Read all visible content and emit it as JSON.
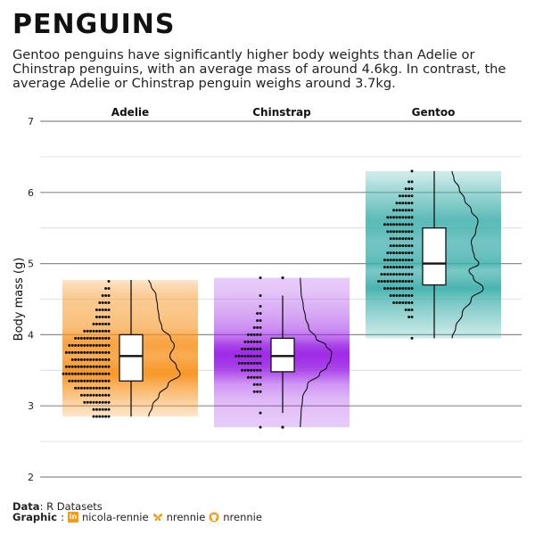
{
  "title": "PENGUINS",
  "subtitle": "Gentoo penguins have significantly higher body weights than Adelie or Chinstrap penguins, with an average mass of around 4.6kg. In contrast, the average Adelie or Chinstrap penguin weighs around 3.7kg.",
  "caption": {
    "data_label": "Data",
    "data_value": ": R Datasets",
    "graphic_label": "Graphic",
    "linkedin": "nicola-rennie",
    "bluesky": "nrennie",
    "github": "nrennie",
    "linkedin_icon": "in"
  },
  "icons": [
    "linkedin-icon",
    "butterfly-icon",
    "github-icon"
  ],
  "chart_data": {
    "type": "raincloud",
    "ylabel": "Body mass (g)",
    "xlabel": "",
    "ylim": [
      2,
      7
    ],
    "yticks": [
      2,
      3,
      4,
      5,
      6,
      7
    ],
    "grid": true,
    "facets": [
      {
        "name": "Adelie",
        "color": "#f7931e",
        "range": [
          2.85,
          4.77
        ],
        "box": {
          "min": 2.85,
          "q1": 3.35,
          "median": 3.7,
          "q3": 4.0,
          "max": 4.77
        },
        "density": [
          [
            2.85,
            0.02
          ],
          [
            3.0,
            0.12
          ],
          [
            3.15,
            0.3
          ],
          [
            3.3,
            0.55
          ],
          [
            3.45,
            0.88
          ],
          [
            3.55,
            0.78
          ],
          [
            3.7,
            0.6
          ],
          [
            3.85,
            0.72
          ],
          [
            3.95,
            0.62
          ],
          [
            4.1,
            0.38
          ],
          [
            4.25,
            0.3
          ],
          [
            4.4,
            0.26
          ],
          [
            4.55,
            0.22
          ],
          [
            4.7,
            0.08
          ],
          [
            4.77,
            0.02
          ]
        ],
        "dots": [
          [
            2.85,
            6
          ],
          [
            2.95,
            6
          ],
          [
            3.05,
            9
          ],
          [
            3.15,
            10
          ],
          [
            3.25,
            12
          ],
          [
            3.35,
            14
          ],
          [
            3.45,
            16
          ],
          [
            3.55,
            15
          ],
          [
            3.65,
            13
          ],
          [
            3.75,
            15
          ],
          [
            3.85,
            14
          ],
          [
            3.95,
            12
          ],
          [
            4.05,
            9
          ],
          [
            4.15,
            6
          ],
          [
            4.25,
            5
          ],
          [
            4.35,
            5
          ],
          [
            4.45,
            4
          ],
          [
            4.55,
            3
          ],
          [
            4.65,
            2
          ],
          [
            4.75,
            1
          ]
        ]
      },
      {
        "name": "Chinstrap",
        "color": "#9b22e6",
        "range": [
          2.7,
          4.8
        ],
        "box": {
          "min": 2.9,
          "q1": 3.48,
          "median": 3.7,
          "q3": 3.95,
          "max": 4.55
        },
        "outliers": [
          2.7,
          4.8
        ],
        "density": [
          [
            2.7,
            0.02
          ],
          [
            2.9,
            0.04
          ],
          [
            3.1,
            0.08
          ],
          [
            3.3,
            0.22
          ],
          [
            3.45,
            0.55
          ],
          [
            3.55,
            0.75
          ],
          [
            3.65,
            0.85
          ],
          [
            3.75,
            0.88
          ],
          [
            3.85,
            0.72
          ],
          [
            3.95,
            0.45
          ],
          [
            4.1,
            0.25
          ],
          [
            4.25,
            0.16
          ],
          [
            4.4,
            0.1
          ],
          [
            4.6,
            0.04
          ],
          [
            4.8,
            0.02
          ]
        ],
        "dots": [
          [
            2.7,
            1
          ],
          [
            2.9,
            1
          ],
          [
            3.2,
            3
          ],
          [
            3.3,
            3
          ],
          [
            3.4,
            5
          ],
          [
            3.5,
            7
          ],
          [
            3.6,
            8
          ],
          [
            3.7,
            9
          ],
          [
            3.8,
            7
          ],
          [
            3.9,
            6
          ],
          [
            4.0,
            5
          ],
          [
            4.1,
            3
          ],
          [
            4.2,
            2
          ],
          [
            4.3,
            2
          ],
          [
            4.4,
            1
          ],
          [
            4.55,
            1
          ],
          [
            4.8,
            1
          ]
        ]
      },
      {
        "name": "Gentoo",
        "color": "#3fb0ac",
        "range": [
          3.95,
          6.3
        ],
        "box": {
          "min": 3.95,
          "q1": 4.7,
          "median": 5.0,
          "q3": 5.5,
          "max": 6.3
        },
        "density": [
          [
            3.95,
            0.02
          ],
          [
            4.1,
            0.1
          ],
          [
            4.3,
            0.25
          ],
          [
            4.5,
            0.45
          ],
          [
            4.65,
            0.72
          ],
          [
            4.8,
            0.5
          ],
          [
            4.9,
            0.4
          ],
          [
            5.0,
            0.62
          ],
          [
            5.1,
            0.52
          ],
          [
            5.2,
            0.48
          ],
          [
            5.3,
            0.45
          ],
          [
            5.45,
            0.55
          ],
          [
            5.6,
            0.6
          ],
          [
            5.75,
            0.45
          ],
          [
            5.9,
            0.3
          ],
          [
            6.05,
            0.18
          ],
          [
            6.2,
            0.06
          ],
          [
            6.3,
            0.02
          ]
        ],
        "dots": [
          [
            3.95,
            1
          ],
          [
            4.25,
            2
          ],
          [
            4.35,
            3
          ],
          [
            4.45,
            7
          ],
          [
            4.55,
            8
          ],
          [
            4.65,
            10
          ],
          [
            4.75,
            12
          ],
          [
            4.85,
            11
          ],
          [
            4.95,
            10
          ],
          [
            5.05,
            10
          ],
          [
            5.15,
            9
          ],
          [
            5.25,
            8
          ],
          [
            5.35,
            8
          ],
          [
            5.45,
            9
          ],
          [
            5.55,
            10
          ],
          [
            5.65,
            9
          ],
          [
            5.75,
            7
          ],
          [
            5.85,
            6
          ],
          [
            5.95,
            5
          ],
          [
            6.05,
            3
          ],
          [
            6.15,
            2
          ],
          [
            6.3,
            1
          ]
        ]
      }
    ]
  }
}
